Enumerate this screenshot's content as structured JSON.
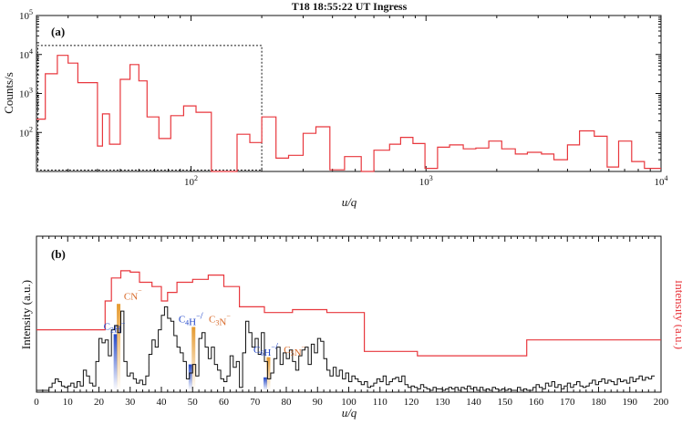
{
  "chart_data": [
    {
      "type": "line",
      "panel_label": "(a)",
      "title": "T18 18:55:22 UT Ingress",
      "xlabel": "u/q",
      "ylabel": "Counts/s",
      "xscale": "log",
      "yscale": "log",
      "xlim": [
        22,
        10000
      ],
      "ylim": [
        10,
        100000
      ],
      "x_ticks": [
        {
          "value": 100,
          "base": "10",
          "exp": "2"
        },
        {
          "value": 1000,
          "base": "10",
          "exp": "3"
        },
        {
          "value": 10000,
          "base": "10",
          "exp": "4"
        }
      ],
      "y_ticks": [
        {
          "value": 100,
          "base": "10",
          "exp": "2"
        },
        {
          "value": 1000,
          "base": "10",
          "exp": "3"
        },
        {
          "value": 10000,
          "base": "10",
          "exp": "4"
        },
        {
          "value": 100000,
          "base": "10",
          "exp": "5"
        }
      ],
      "zoom_box": {
        "x": [
          22,
          200
        ],
        "y": [
          10,
          17000
        ]
      },
      "series": [
        {
          "color": "#e8373d",
          "step_x": [
            22,
            24,
            27,
            30,
            33,
            37,
            40,
            42,
            45,
            50,
            55,
            60,
            65,
            73,
            82,
            93,
            105,
            122,
            138,
            157,
            178,
            200,
            230,
            260,
            300,
            340,
            390,
            450,
            530,
            600,
            700,
            780,
            880,
            990,
            1120,
            1260,
            1440,
            1630,
            1850,
            2100,
            2400,
            2700,
            3100,
            3500,
            4000,
            4500,
            5200,
            5900,
            6600,
            7500,
            8500,
            10000
          ],
          "values": [
            220,
            3200,
            9500,
            6000,
            1900,
            1900,
            45,
            300,
            50,
            2300,
            5500,
            2100,
            250,
            70,
            270,
            480,
            330,
            8,
            10,
            90,
            55,
            250,
            22,
            26,
            95,
            140,
            11,
            24,
            9,
            35,
            50,
            75,
            52,
            12,
            42,
            48,
            38,
            40,
            60,
            38,
            28,
            31,
            28,
            20,
            48,
            110,
            80,
            13,
            60,
            18,
            12
          ]
        }
      ]
    },
    {
      "type": "line",
      "panel_label": "(b)",
      "xlabel": "u/q",
      "ylabel": "Intensity (a.u.)",
      "ylabel_right": "Intensity (a.u.)",
      "xlim": [
        0,
        200
      ],
      "ylim": [
        0,
        1
      ],
      "x_ticks": [
        0,
        10,
        20,
        30,
        40,
        50,
        60,
        70,
        80,
        90,
        100,
        110,
        120,
        130,
        140,
        150,
        160,
        170,
        180,
        190,
        200
      ],
      "series": [
        {
          "color": "#e8373d",
          "step_x": [
            0,
            20,
            22,
            24,
            27,
            30,
            33,
            37,
            40,
            42,
            45,
            50,
            55,
            60,
            65,
            73,
            82,
            93,
            105,
            122,
            138,
            157,
            178,
            200
          ],
          "values": [
            0.42,
            0.42,
            0.62,
            0.78,
            0.83,
            0.82,
            0.75,
            0.72,
            0.62,
            0.68,
            0.75,
            0.77,
            0.8,
            0.72,
            0.58,
            0.54,
            0.56,
            0.54,
            0.27,
            0.24,
            0.24,
            0.35,
            0.35,
            0.35
          ]
        },
        {
          "color": "#111111",
          "step_x": [
            0,
            1,
            2,
            3,
            4,
            5,
            6,
            7,
            8,
            9,
            10,
            11,
            12,
            13,
            14,
            15,
            16,
            17,
            18,
            19,
            20,
            21,
            22,
            23,
            24,
            25,
            26,
            27,
            28,
            29,
            30,
            31,
            32,
            33,
            34,
            35,
            36,
            37,
            38,
            39,
            40,
            41,
            42,
            43,
            44,
            45,
            46,
            47,
            48,
            49,
            50,
            51,
            52,
            53,
            54,
            55,
            56,
            57,
            58,
            59,
            60,
            61,
            62,
            63,
            64,
            65,
            66,
            67,
            68,
            69,
            70,
            71,
            72,
            73,
            74,
            75,
            76,
            77,
            78,
            79,
            80,
            81,
            82,
            83,
            84,
            85,
            86,
            87,
            88,
            89,
            90,
            91,
            92,
            93,
            94,
            95,
            96,
            97,
            98,
            99,
            100,
            101,
            102,
            103,
            104,
            105,
            106,
            107,
            108,
            109,
            110,
            111,
            112,
            113,
            114,
            115,
            116,
            117,
            118,
            119,
            120,
            121,
            122,
            123,
            124,
            125,
            126,
            127,
            128,
            129,
            130,
            131,
            132,
            133,
            134,
            135,
            136,
            137,
            138,
            139,
            140,
            141,
            142,
            143,
            144,
            145,
            146,
            147,
            148,
            149,
            150,
            151,
            152,
            153,
            154,
            155,
            156,
            157,
            158,
            159,
            160,
            161,
            162,
            163,
            164,
            165,
            166,
            167,
            168,
            169,
            170,
            171,
            172,
            173,
            174,
            175,
            176,
            177,
            178,
            179,
            180,
            181,
            182,
            183,
            184,
            185,
            186,
            187,
            188,
            189,
            190,
            191,
            192,
            193,
            194,
            195,
            196,
            197,
            198,
            199,
            200
          ],
          "values": [
            0.0,
            0.0,
            0.0,
            0.0,
            0.02,
            0.05,
            0.08,
            0.06,
            0.03,
            0.02,
            0.03,
            0.05,
            0.02,
            0.06,
            0.03,
            0.14,
            0.1,
            0.05,
            0.03,
            0.2,
            0.36,
            0.33,
            0.35,
            0.24,
            0.42,
            0.45,
            0.4,
            0.55,
            0.2,
            0.1,
            0.12,
            0.08,
            0.05,
            0.07,
            0.04,
            0.1,
            0.25,
            0.35,
            0.3,
            0.42,
            0.52,
            0.58,
            0.5,
            0.48,
            0.38,
            0.3,
            0.26,
            0.2,
            0.08,
            0.12,
            0.18,
            0.1,
            0.36,
            0.4,
            0.3,
            0.22,
            0.3,
            0.18,
            0.14,
            0.08,
            0.06,
            0.1,
            0.24,
            0.16,
            0.2,
            0.02,
            0.26,
            0.48,
            0.4,
            0.3,
            0.36,
            0.25,
            0.4,
            0.2,
            0.08,
            0.12,
            0.22,
            0.3,
            0.18,
            0.26,
            0.22,
            0.28,
            0.2,
            0.14,
            0.24,
            0.28,
            0.3,
            0.18,
            0.32,
            0.26,
            0.36,
            0.34,
            0.22,
            0.14,
            0.1,
            0.16,
            0.1,
            0.14,
            0.08,
            0.12,
            0.06,
            0.1,
            0.08,
            0.06,
            0.04,
            0.06,
            0.02,
            0.03,
            0.05,
            0.08,
            0.06,
            0.1,
            0.04,
            0.06,
            0.08,
            0.09,
            0.06,
            0.1,
            0.04,
            0.02,
            0.03,
            0.02,
            0.01,
            0.04,
            0.02,
            0.01,
            0.0,
            0.02,
            0.01,
            0.01,
            0.0,
            0.01,
            0.02,
            0.01,
            0.02,
            0.0,
            0.02,
            0.01,
            0.03,
            0.01,
            0.02,
            0.0,
            0.02,
            0.0,
            0.01,
            0.0,
            0.02,
            0.01,
            0.0,
            0.01,
            0.0,
            0.01,
            0.0,
            0.0,
            0.02,
            0.0,
            0.01,
            0.0,
            0.0,
            0.02,
            0.04,
            0.02,
            0.01,
            0.05,
            0.03,
            0.06,
            0.02,
            0.04,
            0.01,
            0.03,
            0.05,
            0.02,
            0.04,
            0.06,
            0.03,
            0.02,
            0.03,
            0.05,
            0.07,
            0.04,
            0.06,
            0.08,
            0.05,
            0.07,
            0.06,
            0.04,
            0.08,
            0.06,
            0.07,
            0.05,
            0.09,
            0.06,
            0.08,
            0.1,
            0.07,
            0.09,
            0.08,
            0.1
          ]
        }
      ],
      "markers": [
        {
          "u": 25,
          "height": 0.39,
          "kind": "anion-C2nH",
          "color": "#2146c9"
        },
        {
          "u": 26,
          "height": 0.6,
          "kind": "anion-CnN",
          "color": "#e59a2f"
        },
        {
          "u": 49,
          "height": 0.18,
          "kind": "anion-C2nH",
          "color": "#2146c9"
        },
        {
          "u": 50,
          "height": 0.44,
          "kind": "anion-CnN",
          "color": "#e59a2f"
        },
        {
          "u": 73,
          "height": 0.09,
          "kind": "anion-C2nH",
          "color": "#2146c9"
        },
        {
          "u": 74,
          "height": 0.23,
          "kind": "anion-CnN",
          "color": "#e59a2f"
        }
      ],
      "annotations": [
        {
          "id": "c2h",
          "x": 21.5,
          "y": 0.42,
          "color": "#2146c9",
          "parts": [
            {
              "t": "C"
            },
            {
              "t": "2",
              "sub": true
            },
            {
              "t": "H"
            },
            {
              "t": "−",
              "sup": true
            }
          ]
        },
        {
          "id": "cn",
          "x": 28,
          "y": 0.63,
          "color": "#d86a2a",
          "parts": [
            {
              "t": "CN"
            },
            {
              "t": "−",
              "sup": true
            }
          ]
        },
        {
          "id": "c4h",
          "x": 45.5,
          "y": 0.47,
          "color": "#2146c9",
          "parts": [
            {
              "t": "C"
            },
            {
              "t": "4",
              "sub": true
            },
            {
              "t": "H"
            },
            {
              "t": "−",
              "sup": true
            },
            {
              "t": "/"
            }
          ]
        },
        {
          "id": "c3n",
          "x": 55.2,
          "y": 0.47,
          "color": "#d86a2a",
          "parts": [
            {
              "t": "C"
            },
            {
              "t": "3",
              "sub": true
            },
            {
              "t": "N"
            },
            {
              "t": "−",
              "sup": true
            }
          ]
        },
        {
          "id": "c6h",
          "x": 69.5,
          "y": 0.26,
          "color": "#2146c9",
          "parts": [
            {
              "t": "C"
            },
            {
              "t": "6",
              "sub": true
            },
            {
              "t": "H"
            },
            {
              "t": "−",
              "sup": true
            },
            {
              "t": "/"
            }
          ]
        },
        {
          "id": "c5n",
          "x": 79.2,
          "y": 0.26,
          "color": "#d86a2a",
          "parts": [
            {
              "t": "C"
            },
            {
              "t": "5",
              "sub": true
            },
            {
              "t": "N"
            },
            {
              "t": "−",
              "sup": true
            }
          ]
        }
      ]
    }
  ]
}
